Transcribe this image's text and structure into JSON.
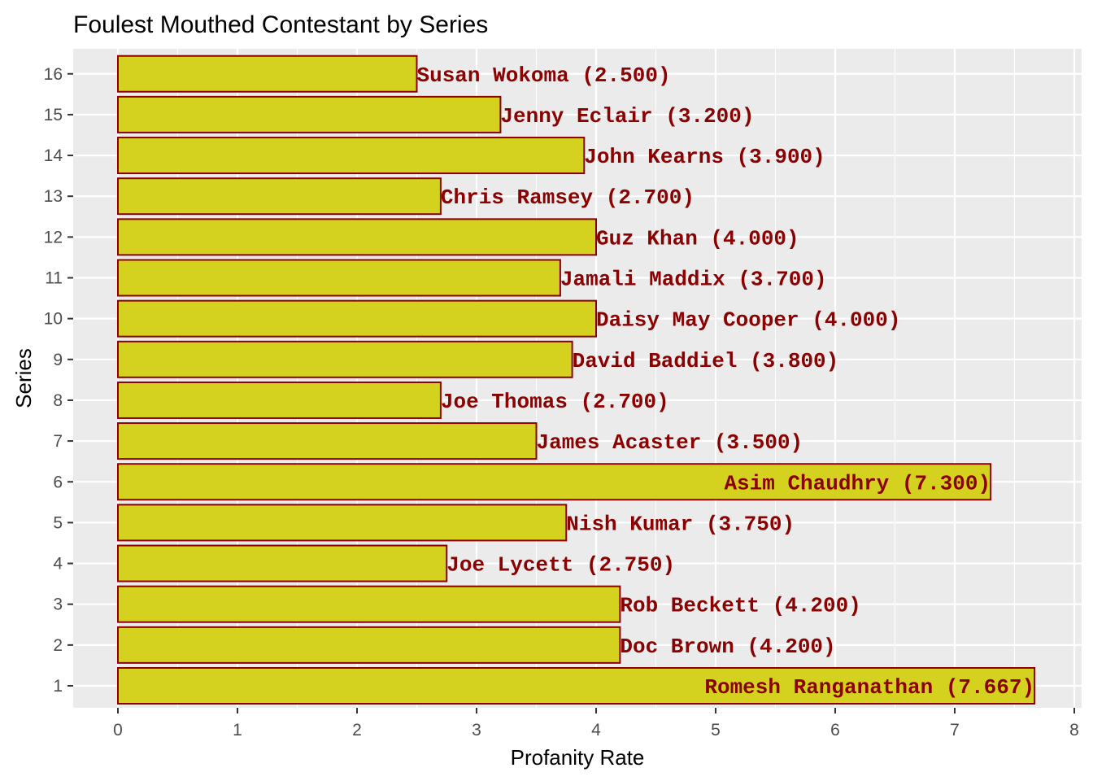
{
  "chart_data": {
    "type": "bar",
    "orientation": "horizontal",
    "title": "Foulest Mouthed Contestant by Series",
    "xlabel": "Profanity Rate",
    "ylabel": "Series",
    "xlim": [
      0,
      8
    ],
    "x_ticks": [
      0,
      1,
      2,
      3,
      4,
      5,
      6,
      7,
      8
    ],
    "grid": true,
    "legend": "none",
    "colors": {
      "panel": "#ebebeb",
      "grid": "#ffffff",
      "bar_fill": "#d4d21f",
      "bar_outline": "#8b0000",
      "label": "#8b0000"
    },
    "bars": [
      {
        "series": "1",
        "contestant": "Romesh Ranganathan",
        "value": 7.667,
        "label": "Romesh Ranganathan (7.667)"
      },
      {
        "series": "2",
        "contestant": "Doc Brown",
        "value": 4.2,
        "label": "Doc Brown (4.200)"
      },
      {
        "series": "3",
        "contestant": "Rob Beckett",
        "value": 4.2,
        "label": "Rob Beckett (4.200)"
      },
      {
        "series": "4",
        "contestant": "Joe Lycett",
        "value": 2.75,
        "label": "Joe Lycett (2.750)"
      },
      {
        "series": "5",
        "contestant": "Nish Kumar",
        "value": 3.75,
        "label": "Nish Kumar (3.750)"
      },
      {
        "series": "6",
        "contestant": "Asim Chaudhry",
        "value": 7.3,
        "label": "Asim Chaudhry (7.300)"
      },
      {
        "series": "7",
        "contestant": "James Acaster",
        "value": 3.5,
        "label": "James Acaster (3.500)"
      },
      {
        "series": "8",
        "contestant": "Joe Thomas",
        "value": 2.7,
        "label": "Joe Thomas (2.700)"
      },
      {
        "series": "9",
        "contestant": "David Baddiel",
        "value": 3.8,
        "label": "David Baddiel (3.800)"
      },
      {
        "series": "10",
        "contestant": "Daisy May Cooper",
        "value": 4.0,
        "label": "Daisy May Cooper (4.000)"
      },
      {
        "series": "11",
        "contestant": "Jamali Maddix",
        "value": 3.7,
        "label": "Jamali Maddix (3.700)"
      },
      {
        "series": "12",
        "contestant": "Guz Khan",
        "value": 4.0,
        "label": "Guz Khan (4.000)"
      },
      {
        "series": "13",
        "contestant": "Chris Ramsey",
        "value": 2.7,
        "label": "Chris Ramsey (2.700)"
      },
      {
        "series": "14",
        "contestant": "John Kearns",
        "value": 3.9,
        "label": "John Kearns (3.900)"
      },
      {
        "series": "15",
        "contestant": "Jenny Eclair",
        "value": 3.2,
        "label": "Jenny Eclair (3.200)"
      },
      {
        "series": "16",
        "contestant": "Susan Wokoma",
        "value": 2.5,
        "label": "Susan Wokoma (2.500)"
      }
    ]
  }
}
